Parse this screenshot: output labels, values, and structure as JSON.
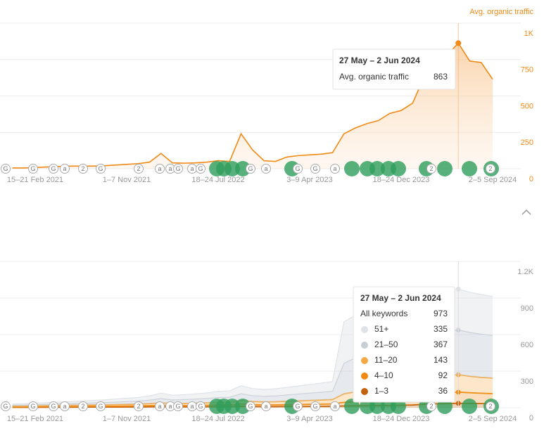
{
  "event_markers": [
    "G",
    "G",
    "G",
    "a",
    "2",
    "G",
    "2",
    "a",
    "a",
    "G",
    "a",
    "G",
    "G",
    "a",
    "G",
    "G",
    "a",
    "2",
    "2"
  ],
  "chart_data": [
    {
      "type": "line",
      "series_label": "Avg. organic traffic",
      "color": "#ef8a17",
      "categories": [
        null,
        null,
        "15–21 Feb 2021",
        null,
        null,
        null,
        null,
        null,
        null,
        null,
        "1–7 Nov 2021",
        null,
        null,
        null,
        null,
        null,
        null,
        null,
        "18–24 Jul 2022",
        null,
        null,
        null,
        null,
        null,
        null,
        null,
        "3–9 Apr 2023",
        null,
        null,
        null,
        null,
        null,
        null,
        null,
        "18–24 Dec 2023",
        null,
        null,
        null,
        null,
        null,
        null,
        null,
        "2–5 Sep 2024"
      ],
      "values": [
        5,
        5,
        8,
        12,
        15,
        18,
        18,
        18,
        20,
        25,
        30,
        35,
        45,
        105,
        40,
        38,
        40,
        45,
        55,
        50,
        240,
        130,
        55,
        50,
        80,
        90,
        95,
        100,
        110,
        240,
        280,
        310,
        330,
        380,
        400,
        450,
        630,
        760,
        780,
        863,
        740,
        730,
        615
      ],
      "ylim": [
        0,
        1000
      ],
      "yticks": [
        0,
        250,
        500,
        750,
        {
          "value": 1000,
          "label": "1K"
        }
      ],
      "grid": true,
      "tooltip": {
        "title": "27 May – 2 Jun 2024",
        "label": "Avg. organic traffic"
      }
    },
    {
      "type": "stacked_area",
      "categories": [
        null,
        null,
        "15–21 Feb 2021",
        null,
        null,
        null,
        null,
        null,
        null,
        null,
        "1–7 Nov 2021",
        null,
        null,
        null,
        null,
        null,
        null,
        null,
        "18–24 Jul 2022",
        null,
        null,
        null,
        null,
        null,
        null,
        null,
        "3–9 Apr 2023",
        null,
        null,
        null,
        null,
        null,
        null,
        null,
        "18–24 Dec 2023",
        null,
        null,
        null,
        null,
        null,
        null,
        null,
        "2–5 Sep 2024"
      ],
      "series": [
        {
          "name": "51+",
          "color": "#dfe3e7",
          "values": [
            10,
            11,
            12,
            13,
            14,
            16,
            18,
            20,
            22,
            25,
            28,
            30,
            35,
            45,
            38,
            40,
            42,
            45,
            50,
            52,
            65,
            58,
            56,
            58,
            62,
            66,
            70,
            75,
            80,
            340,
            350,
            350,
            345,
            340,
            335,
            330,
            330,
            335,
            335,
            335,
            330,
            325,
            320
          ]
        },
        {
          "name": "21–50",
          "color": "#c7ced6",
          "values": [
            8,
            9,
            10,
            11,
            12,
            14,
            15,
            16,
            18,
            20,
            22,
            24,
            28,
            35,
            30,
            32,
            34,
            36,
            40,
            42,
            55,
            48,
            46,
            48,
            52,
            56,
            60,
            64,
            68,
            250,
            280,
            290,
            300,
            310,
            320,
            330,
            350,
            360,
            365,
            367,
            360,
            355,
            350
          ]
        },
        {
          "name": "11–20",
          "color": "#f4a946",
          "values": [
            6,
            6,
            7,
            8,
            9,
            10,
            10,
            11,
            12,
            13,
            14,
            15,
            17,
            20,
            17,
            18,
            19,
            20,
            22,
            22,
            30,
            26,
            25,
            26,
            28,
            30,
            32,
            34,
            36,
            70,
            80,
            85,
            90,
            95,
            100,
            105,
            125,
            135,
            140,
            143,
            135,
            130,
            128
          ]
        },
        {
          "name": "4–10",
          "color": "#f08a12",
          "values": [
            4,
            4,
            5,
            5,
            6,
            6,
            6,
            7,
            7,
            8,
            8,
            9,
            10,
            12,
            10,
            10,
            11,
            12,
            13,
            13,
            18,
            15,
            14,
            14,
            15,
            16,
            17,
            18,
            19,
            30,
            35,
            40,
            45,
            50,
            55,
            60,
            75,
            85,
            90,
            92,
            88,
            85,
            82
          ]
        },
        {
          "name": "1–3",
          "color": "#c2620c",
          "values": [
            3,
            3,
            3,
            4,
            4,
            4,
            5,
            5,
            5,
            5,
            6,
            6,
            7,
            8,
            7,
            7,
            7,
            8,
            9,
            9,
            12,
            10,
            9,
            9,
            10,
            10,
            11,
            11,
            12,
            14,
            15,
            16,
            17,
            18,
            20,
            22,
            28,
            32,
            34,
            36,
            35,
            34,
            33
          ]
        }
      ],
      "ylim": [
        0,
        1200
      ],
      "yticks": [
        0,
        300,
        600,
        900,
        {
          "value": 1200,
          "label": "1.2K"
        }
      ],
      "grid": true,
      "tooltip": {
        "title": "27 May – 2 Jun 2024",
        "total_label": "All keywords",
        "total": 973
      }
    }
  ]
}
